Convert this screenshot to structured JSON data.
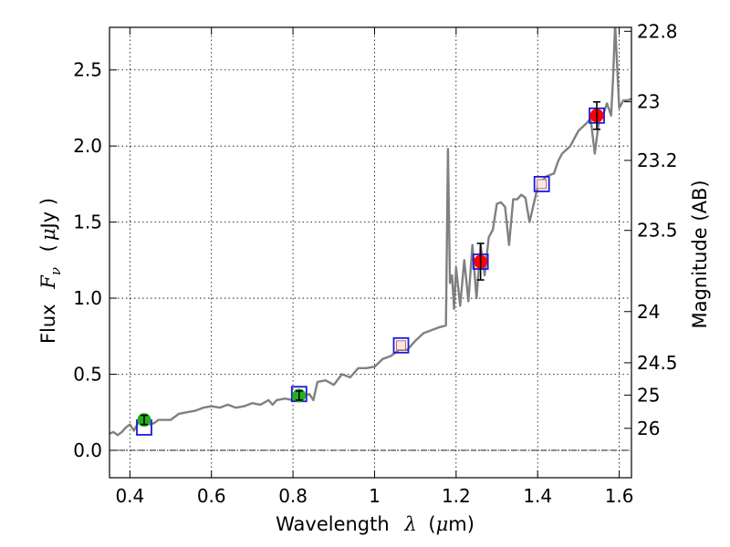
{
  "chart_data": {
    "type": "scatter",
    "title": "",
    "xlabel_prefix": "Wavelength",
    "xlabel_var": "λ",
    "xlabel_unit_open": "(",
    "xlabel_unit_mu": "μ",
    "xlabel_unit_rest": "m)",
    "ylabel_prefix": "Flux",
    "ylabel_var": "F",
    "ylabel_sub": "ν",
    "ylabel_unit_open": "(",
    "ylabel_unit_mu": "μ",
    "ylabel_unit_rest": "Jy )",
    "y2label": "Magnitude (AB)",
    "xlim": [
      0.35,
      1.63
    ],
    "ylim": [
      -0.18,
      2.78
    ],
    "grid": true,
    "x_ticks": [
      {
        "v": 0.4,
        "label": "0.4"
      },
      {
        "v": 0.6,
        "label": "0.6"
      },
      {
        "v": 0.8,
        "label": "0.8"
      },
      {
        "v": 1.0,
        "label": "1"
      },
      {
        "v": 1.2,
        "label": "1.2"
      },
      {
        "v": 1.4,
        "label": "1.4"
      },
      {
        "v": 1.6,
        "label": "1.6"
      }
    ],
    "y_ticks": [
      {
        "v": 0.0,
        "label": "0.0"
      },
      {
        "v": 0.5,
        "label": "0.5"
      },
      {
        "v": 1.0,
        "label": "1.0"
      },
      {
        "v": 1.5,
        "label": "1.5"
      },
      {
        "v": 2.0,
        "label": "2.0"
      },
      {
        "v": 2.5,
        "label": "2.5"
      }
    ],
    "y2_ticks": [
      {
        "mag": 22.8,
        "label": "22.8"
      },
      {
        "mag": 23.0,
        "label": "23"
      },
      {
        "mag": 23.2,
        "label": "23.2"
      },
      {
        "mag": 23.5,
        "label": "23.5"
      },
      {
        "mag": 24.0,
        "label": "24"
      },
      {
        "mag": 24.5,
        "label": "24.5"
      },
      {
        "mag": 25.0,
        "label": "25"
      },
      {
        "mag": 26.0,
        "label": "26"
      }
    ],
    "series": [
      {
        "kind": "model_sed",
        "color": "#808080",
        "x": [
          0.35,
          0.36,
          0.37,
          0.38,
          0.39,
          0.4,
          0.41,
          0.42,
          0.43,
          0.44,
          0.45,
          0.46,
          0.47,
          0.48,
          0.5,
          0.52,
          0.54,
          0.56,
          0.58,
          0.6,
          0.62,
          0.64,
          0.66,
          0.68,
          0.7,
          0.72,
          0.74,
          0.75,
          0.76,
          0.78,
          0.8,
          0.82,
          0.84,
          0.85,
          0.86,
          0.88,
          0.9,
          0.92,
          0.94,
          0.96,
          0.98,
          1.0,
          1.02,
          1.04,
          1.06,
          1.08,
          1.1,
          1.12,
          1.14,
          1.16,
          1.175,
          1.18,
          1.185,
          1.19,
          1.195,
          1.2,
          1.21,
          1.22,
          1.23,
          1.24,
          1.25,
          1.26,
          1.27,
          1.28,
          1.29,
          1.3,
          1.31,
          1.32,
          1.33,
          1.34,
          1.35,
          1.36,
          1.37,
          1.38,
          1.4,
          1.42,
          1.44,
          1.45,
          1.46,
          1.48,
          1.5,
          1.52,
          1.53,
          1.54,
          1.55,
          1.56,
          1.57,
          1.58,
          1.585,
          1.59,
          1.6,
          1.61,
          1.62,
          1.63
        ],
        "y": [
          0.11,
          0.12,
          0.1,
          0.12,
          0.15,
          0.17,
          0.13,
          0.18,
          0.19,
          0.18,
          0.17,
          0.18,
          0.2,
          0.2,
          0.2,
          0.24,
          0.25,
          0.26,
          0.28,
          0.29,
          0.28,
          0.3,
          0.28,
          0.29,
          0.31,
          0.3,
          0.33,
          0.3,
          0.33,
          0.34,
          0.33,
          0.35,
          0.37,
          0.33,
          0.45,
          0.46,
          0.43,
          0.5,
          0.48,
          0.54,
          0.54,
          0.55,
          0.6,
          0.62,
          0.66,
          0.66,
          0.72,
          0.77,
          0.79,
          0.81,
          0.82,
          1.98,
          1.1,
          1.15,
          0.93,
          1.2,
          0.95,
          1.25,
          0.98,
          1.35,
          1.0,
          1.35,
          1.15,
          1.4,
          1.45,
          1.62,
          1.63,
          1.6,
          1.35,
          1.65,
          1.65,
          1.68,
          1.66,
          1.5,
          1.73,
          1.8,
          1.82,
          1.9,
          1.95,
          2.0,
          2.1,
          2.15,
          2.18,
          1.95,
          2.16,
          2.2,
          2.28,
          2.2,
          2.45,
          2.8,
          2.25,
          2.3,
          2.3,
          2.31
        ]
      },
      {
        "kind": "model_band_flux",
        "color": "#1a1adb",
        "x": [
          0.435,
          0.815,
          1.065,
          1.26,
          1.41,
          1.545
        ],
        "y": [
          0.15,
          0.37,
          0.69,
          1.24,
          1.75,
          2.2
        ]
      },
      {
        "kind": "photometry_optical",
        "color": "#22b022",
        "x": [
          0.435,
          0.815
        ],
        "y": [
          0.2,
          0.36
        ],
        "err": [
          0.03,
          0.03
        ]
      },
      {
        "kind": "photometry_nir",
        "color": "#ff0000",
        "x": [
          1.26,
          1.545
        ],
        "y": [
          1.24,
          2.2
        ],
        "err": [
          0.12,
          0.09
        ]
      },
      {
        "kind": "upper_limits",
        "color": "#d06060",
        "x": [
          1.065,
          1.41
        ],
        "y": [
          0.69,
          1.75
        ],
        "err": [
          0.0,
          0.0
        ]
      }
    ]
  }
}
